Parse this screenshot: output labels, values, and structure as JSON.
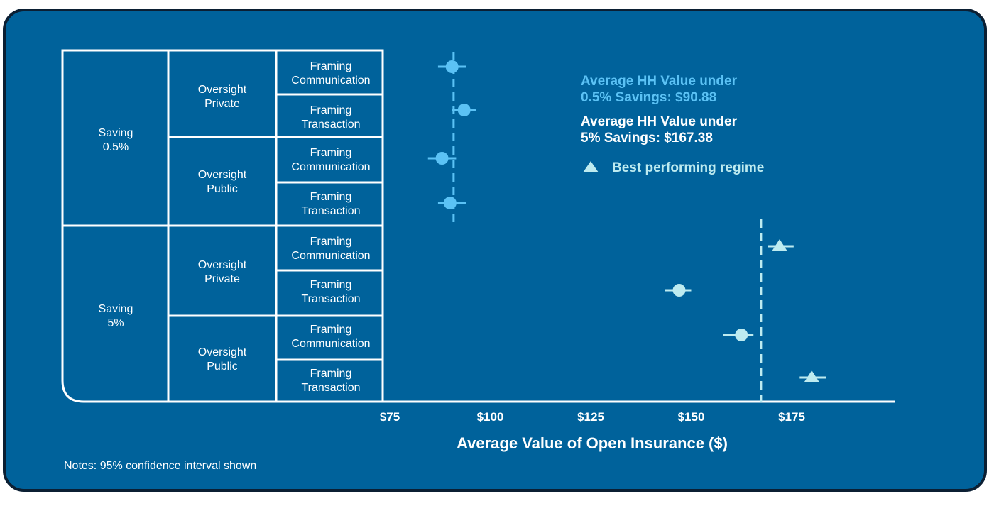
{
  "colors": {
    "background": "#00629b",
    "border": "#0b1f33",
    "line": "#ffffff",
    "series_low": "#5bc2f5",
    "series_high": "#bdebf0"
  },
  "annotations": {
    "low_line1": "Average HH Value under",
    "low_line2": "0.5% Savings: $90.88",
    "high_line1": "Average HH Value under",
    "high_line2": "5% Savings: $167.38",
    "legend_label": "Best performing regime",
    "legend_icon": "triangle-icon"
  },
  "notes": "Notes: 95% confidence interval shown",
  "chart_data": {
    "type": "scatter",
    "xlabel": "Average Value of Open Insurance ($)",
    "xticks": [
      "$75",
      "$100",
      "$125",
      "$150",
      "$175"
    ],
    "xtick_values": [
      75,
      100,
      125,
      150,
      175
    ],
    "xlim": [
      75,
      200
    ],
    "reference_lines": [
      {
        "label": "0.5% Savings",
        "value": 90.88
      },
      {
        "label": "5% Savings",
        "value": 167.38
      }
    ],
    "groups": {
      "saving": [
        "Saving 0.5%",
        "Saving 5%"
      ],
      "oversight": [
        "Oversight Private",
        "Oversight Public",
        "Oversight Private",
        "Oversight Public"
      ],
      "framing": [
        "Framing Communication",
        "Framing Transaction",
        "Framing Communication",
        "Framing Transaction",
        "Framing Communication",
        "Framing Transaction",
        "Framing Communication",
        "Framing Transaction"
      ]
    },
    "points": [
      {
        "saving": "0.5%",
        "oversight": "Private",
        "framing": "Communication",
        "value": 90.5,
        "ci": [
          87.0,
          94.0
        ],
        "marker": "circle"
      },
      {
        "saving": "0.5%",
        "oversight": "Private",
        "framing": "Transaction",
        "value": 93.5,
        "ci": [
          90.5,
          96.5
        ],
        "marker": "circle"
      },
      {
        "saving": "0.5%",
        "oversight": "Public",
        "framing": "Communication",
        "value": 88.0,
        "ci": [
          84.5,
          91.5
        ],
        "marker": "circle"
      },
      {
        "saving": "0.5%",
        "oversight": "Public",
        "framing": "Transaction",
        "value": 90.0,
        "ci": [
          87.0,
          94.0
        ],
        "marker": "circle"
      },
      {
        "saving": "5%",
        "oversight": "Private",
        "framing": "Communication",
        "value": 172.0,
        "ci": [
          169.0,
          175.5
        ],
        "marker": "triangle"
      },
      {
        "saving": "5%",
        "oversight": "Private",
        "framing": "Transaction",
        "value": 147.0,
        "ci": [
          143.5,
          150.0
        ],
        "marker": "circle"
      },
      {
        "saving": "5%",
        "oversight": "Public",
        "framing": "Communication",
        "value": 162.5,
        "ci": [
          158.0,
          165.5
        ],
        "marker": "circle"
      },
      {
        "saving": "5%",
        "oversight": "Public",
        "framing": "Transaction",
        "value": 180.0,
        "ci": [
          177.0,
          183.5
        ],
        "marker": "triangle"
      }
    ]
  }
}
